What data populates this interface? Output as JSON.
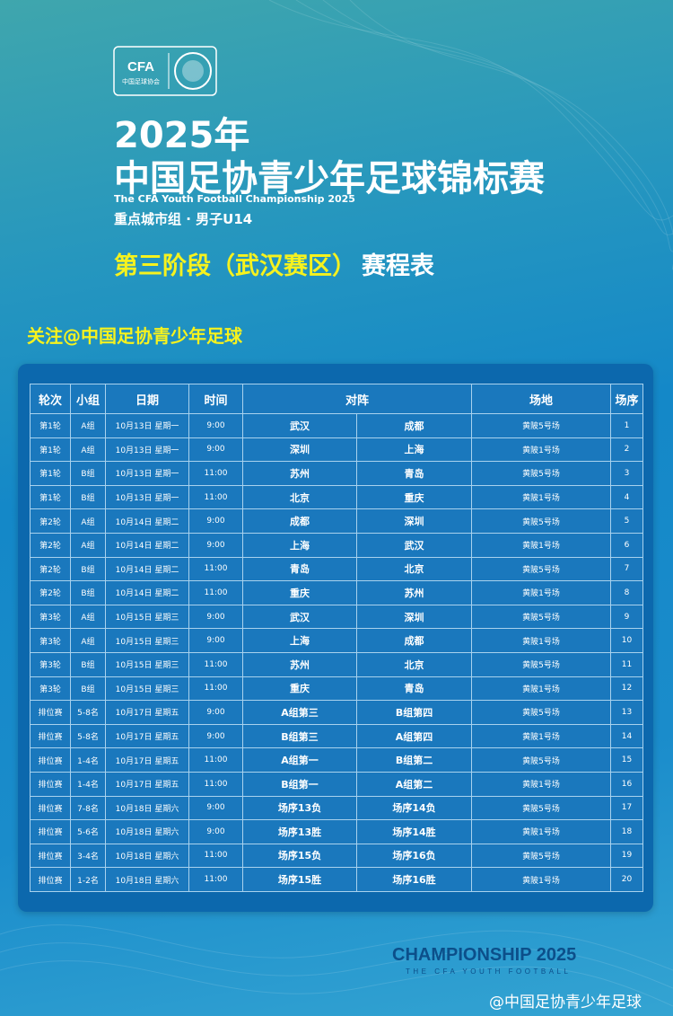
{
  "logo": {
    "abbr": "CFA",
    "name": "中国足球协会"
  },
  "header": {
    "year": "2025年",
    "title": "中国足协青少年足球锦标赛",
    "english": "The CFA Youth Football Championship 2025",
    "division": "重点城市组 · 男子U14",
    "stage": "第三阶段（武汉赛区）",
    "schedule": "赛程表"
  },
  "follow": "关注@中国足协青少年足球",
  "table": {
    "header": [
      "轮次",
      "小组",
      "日期",
      "时间",
      "对阵",
      "场地",
      "场序"
    ],
    "rows": [
      [
        "第1轮",
        "A组",
        "10月13日 星期一",
        "9:00",
        "武汉",
        "成都",
        "黄陂5号场",
        1
      ],
      [
        "第1轮",
        "A组",
        "10月13日 星期一",
        "9:00",
        "深圳",
        "上海",
        "黄陂1号场",
        2
      ],
      [
        "第1轮",
        "B组",
        "10月13日 星期一",
        "11:00",
        "苏州",
        "青岛",
        "黄陂5号场",
        3
      ],
      [
        "第1轮",
        "B组",
        "10月13日 星期一",
        "11:00",
        "北京",
        "重庆",
        "黄陂1号场",
        4
      ],
      [
        "第2轮",
        "A组",
        "10月14日 星期二",
        "9:00",
        "成都",
        "深圳",
        "黄陂5号场",
        5
      ],
      [
        "第2轮",
        "A组",
        "10月14日 星期二",
        "9:00",
        "上海",
        "武汉",
        "黄陂1号场",
        6
      ],
      [
        "第2轮",
        "B组",
        "10月14日 星期二",
        "11:00",
        "青岛",
        "北京",
        "黄陂5号场",
        7
      ],
      [
        "第2轮",
        "B组",
        "10月14日 星期二",
        "11:00",
        "重庆",
        "苏州",
        "黄陂1号场",
        8
      ],
      [
        "第3轮",
        "A组",
        "10月15日 星期三",
        "9:00",
        "武汉",
        "深圳",
        "黄陂5号场",
        9
      ],
      [
        "第3轮",
        "A组",
        "10月15日 星期三",
        "9:00",
        "上海",
        "成都",
        "黄陂1号场",
        10
      ],
      [
        "第3轮",
        "B组",
        "10月15日 星期三",
        "11:00",
        "苏州",
        "北京",
        "黄陂5号场",
        11
      ],
      [
        "第3轮",
        "B组",
        "10月15日 星期三",
        "11:00",
        "重庆",
        "青岛",
        "黄陂1号场",
        12
      ],
      [
        "排位赛",
        "5-8名",
        "10月17日 星期五",
        "9:00",
        "A组第三",
        "B组第四",
        "黄陂5号场",
        13
      ],
      [
        "排位赛",
        "5-8名",
        "10月17日 星期五",
        "9:00",
        "B组第三",
        "A组第四",
        "黄陂1号场",
        14
      ],
      [
        "排位赛",
        "1-4名",
        "10月17日 星期五",
        "11:00",
        "A组第一",
        "B组第二",
        "黄陂5号场",
        15
      ],
      [
        "排位赛",
        "1-4名",
        "10月17日 星期五",
        "11:00",
        "B组第一",
        "A组第二",
        "黄陂1号场",
        16
      ],
      [
        "排位赛",
        "7-8名",
        "10月18日 星期六",
        "9:00",
        "场序13负",
        "场序14负",
        "黄陂5号场",
        17
      ],
      [
        "排位赛",
        "5-6名",
        "10月18日 星期六",
        "9:00",
        "场序13胜",
        "场序14胜",
        "黄陂1号场",
        18
      ],
      [
        "排位赛",
        "3-4名",
        "10月18日 星期六",
        "11:00",
        "场序15负",
        "场序16负",
        "黄陂5号场",
        19
      ],
      [
        "排位赛",
        "1-2名",
        "10月18日 星期六",
        "11:00",
        "场序15胜",
        "场序16胜",
        "黄陂1号场",
        20
      ]
    ]
  },
  "footer": {
    "brand": "CHAMPIONSHIP 2025",
    "tagline": "THE CFA YOUTH FOOTBALL",
    "watermark": "@中国足协青少年足球"
  }
}
